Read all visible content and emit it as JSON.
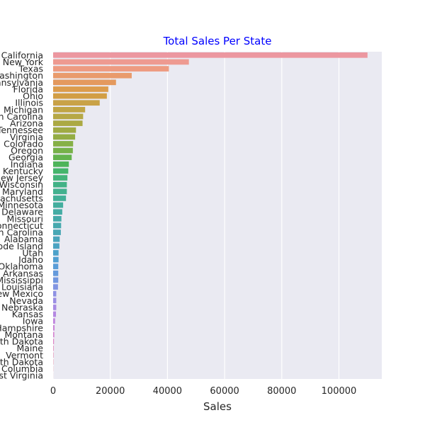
{
  "chart_data": {
    "type": "bar",
    "orientation": "horizontal",
    "title": "Total Sales Per State",
    "xlabel": "Sales",
    "ylabel": "",
    "xlim": [
      0,
      115000
    ],
    "xticks": [
      0,
      20000,
      40000,
      60000,
      80000,
      100000
    ],
    "xtick_labels": [
      "0",
      "20000",
      "40000",
      "60000",
      "80000",
      "100000"
    ],
    "grid": true,
    "colors": {
      "title": "#0000ff",
      "plot_background": "#eaeaf2",
      "grid": "#ffffff",
      "text": "#262626"
    },
    "categories": [
      "California",
      "New York",
      "Texas",
      "Washington",
      "Pennsylvania",
      "Florida",
      "Ohio",
      "Illinois",
      "Michigan",
      "North Carolina",
      "Arizona",
      "Tennessee",
      "Virginia",
      "Colorado",
      "Oregon",
      "Georgia",
      "Indiana",
      "Kentucky",
      "New Jersey",
      "Wisconsin",
      "Maryland",
      "Massachusetts",
      "Minnesota",
      "Delaware",
      "Missouri",
      "Connecticut",
      "South Carolina",
      "Alabama",
      "Rhode Island",
      "Utah",
      "Idaho",
      "Oklahoma",
      "Arkansas",
      "Mississippi",
      "Louisiana",
      "New Mexico",
      "Nevada",
      "Nebraska",
      "Kansas",
      "Iowa",
      "New Hampshire",
      "Montana",
      "South Dakota",
      "Maine",
      "Vermont",
      "North Dakota",
      "District of Columbia",
      "West Virginia"
    ],
    "values": [
      110000,
      47500,
      40500,
      27500,
      22000,
      19300,
      18800,
      16300,
      11200,
      10500,
      10300,
      8000,
      7700,
      7000,
      6900,
      6500,
      5500,
      5300,
      5000,
      4800,
      4800,
      4500,
      3500,
      3200,
      2900,
      2800,
      2700,
      2300,
      2200,
      1900,
      1900,
      1800,
      1800,
      1800,
      1700,
      1100,
      1100,
      1100,
      1000,
      700,
      500,
      400,
      300,
      200,
      150,
      100,
      50,
      20
    ],
    "bar_colors": [
      "#ec97a0",
      "#ee9a91",
      "#ee9b81",
      "#e99b6c",
      "#e4995e",
      "#dc9c4c",
      "#d29e45",
      "#c9a247",
      "#c0a545",
      "#b6a845",
      "#aba943",
      "#a0ab44",
      "#94ad44",
      "#86b046",
      "#76b149",
      "#63b34d",
      "#4eb45a",
      "#45b56c",
      "#44b47a",
      "#42b286",
      "#43b18f",
      "#42b097",
      "#44ae9e",
      "#45aca4",
      "#45aaa9",
      "#46a9ae",
      "#48a7b4",
      "#4aa5bb",
      "#4ba4c2",
      "#4da2ca",
      "#51a0d2",
      "#5a9ed8",
      "#669bdc",
      "#7398e0",
      "#8195e2",
      "#8e91e4",
      "#9b8ee4",
      "#a88be4",
      "#b488e2",
      "#c086de",
      "#cb84d8",
      "#d583d0",
      "#dd85c6",
      "#e289bb",
      "#e68db1",
      "#e991a7",
      "#ea939f",
      "#eb9598"
    ]
  }
}
